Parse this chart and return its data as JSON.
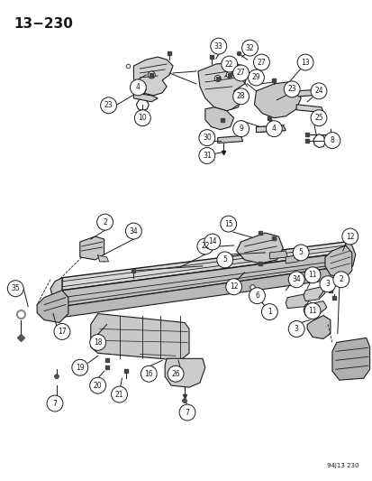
{
  "title": "13−230",
  "subtitle": "94J13 230",
  "bg_color": "#ffffff",
  "line_color": "#1a1a1a",
  "fig_width": 4.14,
  "fig_height": 5.33,
  "dpi": 100
}
